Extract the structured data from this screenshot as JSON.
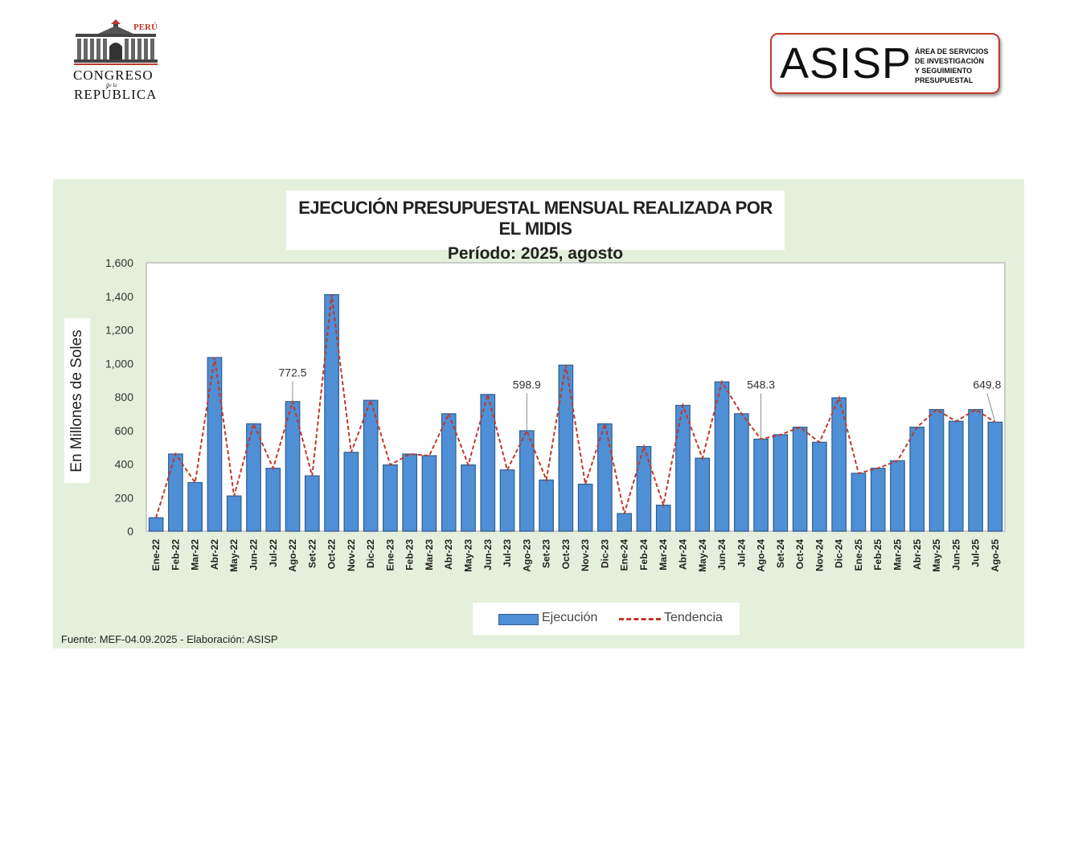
{
  "header": {
    "congreso_logo": {
      "peru": "PERÚ",
      "congreso": "CONGRESO",
      "de_la": "de la",
      "republica": "REPÚBLICA"
    },
    "asisp_logo": {
      "name": "ASISP",
      "subtitle_lines": [
        "ÁREA DE SERVICIOS",
        "DE INVESTIGACIÓN",
        "Y SEGUIMIENTO",
        "PRESUPUESTAL"
      ]
    }
  },
  "colors": {
    "bar": "#4f8fd6",
    "bar_border": "#2f5d8f",
    "trend": "#c0392b",
    "panel_bg": "#e4f0dc"
  },
  "chart_data": {
    "type": "bar",
    "title": "EJECUCIÓN PRESUPUESTAL MENSUAL REALIZADA POR EL MIDIS",
    "subtitle": "Período: 2025, agosto",
    "ylabel": "En Millones de Soles",
    "xlabel": "",
    "ylim": [
      0,
      1600
    ],
    "yticks": [
      0,
      200,
      400,
      600,
      800,
      1000,
      1200,
      1400,
      1600
    ],
    "ytick_labels": [
      "0",
      "200",
      "400",
      "600",
      "800",
      "1,000",
      "1,200",
      "1,400",
      "1,600"
    ],
    "grid": false,
    "legend_position": "bottom",
    "categories": [
      "Ene-22",
      "Feb-22",
      "Mar-22",
      "Abr-22",
      "May-22",
      "Jun-22",
      "Jul-22",
      "Ago-22",
      "Set-22",
      "Oct-22",
      "Nov-22",
      "Dic-22",
      "Ene-23",
      "Feb-23",
      "Mar-23",
      "Abr-23",
      "May-23",
      "Jun-23",
      "Jul-23",
      "Ago-23",
      "Set-23",
      "Oct-23",
      "Nov-23",
      "Dic-23",
      "Ene-24",
      "Feb-24",
      "Mar-24",
      "Abr-24",
      "May-24",
      "Jun-24",
      "Jul-24",
      "Ago-24",
      "Set-24",
      "Oct-24",
      "Nov-24",
      "Dic-24",
      "Ene-25",
      "Feb-25",
      "Mar-25",
      "Abr-25",
      "May-25",
      "Jun-25",
      "Jul-25",
      "Ago-25"
    ],
    "series": [
      {
        "name": "Ejecución",
        "type": "bar",
        "values": [
          80,
          460,
          290,
          1035,
          210,
          640,
          375,
          772.5,
          330,
          1410,
          470,
          780,
          395,
          460,
          450,
          700,
          395,
          815,
          365,
          598.9,
          305,
          990,
          280,
          640,
          105,
          505,
          155,
          750,
          435,
          890,
          700,
          548.3,
          575,
          620,
          530,
          795,
          345,
          375,
          420,
          620,
          725,
          655,
          725,
          649.8
        ]
      },
      {
        "name": "Tendencia",
        "type": "line",
        "values": [
          80,
          460,
          290,
          1035,
          210,
          640,
          375,
          772.5,
          330,
          1410,
          470,
          780,
          395,
          460,
          450,
          700,
          395,
          815,
          365,
          598.9,
          305,
          990,
          280,
          640,
          105,
          505,
          155,
          750,
          435,
          890,
          700,
          548.3,
          575,
          620,
          530,
          795,
          345,
          375,
          420,
          620,
          725,
          655,
          725,
          649.8
        ]
      }
    ],
    "annotations": [
      {
        "category": "Ago-22",
        "label": "772.5"
      },
      {
        "category": "Ago-23",
        "label": "598.9"
      },
      {
        "category": "Ago-24",
        "label": "548.3"
      },
      {
        "category": "Ago-25",
        "label": "649.8"
      }
    ],
    "source": "Fuente:  MEF-04.09.2025 - Elaboración: ASISP"
  }
}
